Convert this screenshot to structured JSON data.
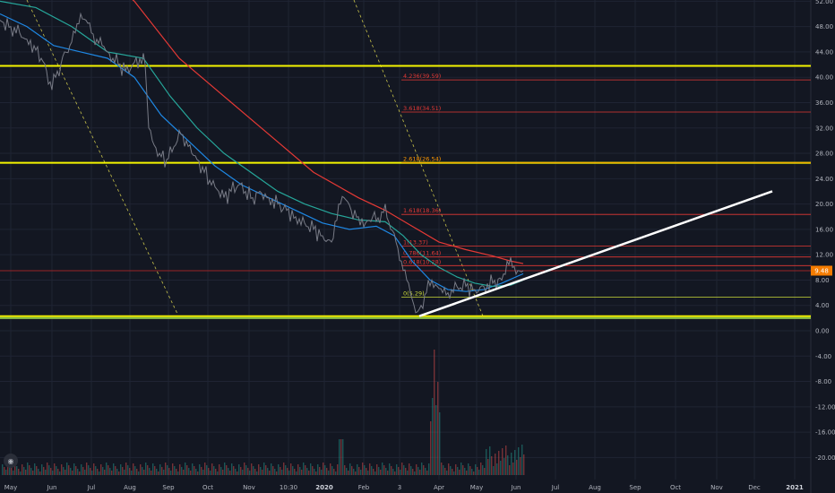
{
  "chart_data": {
    "type": "line",
    "ylim": [
      -22,
      52
    ],
    "y_ticks": [
      "52.00",
      "48.00",
      "44.00",
      "40.00",
      "36.00",
      "32.00",
      "28.00",
      "24.00",
      "20.00",
      "16.00",
      "12.00",
      "8.00",
      "4.00",
      "0.00",
      "-4.00",
      "-8.00",
      "-12.00",
      "-16.00",
      "-20.00"
    ],
    "x_ticks": [
      {
        "label": "May",
        "bold": false
      },
      {
        "label": "Jun",
        "bold": false
      },
      {
        "label": "Jul",
        "bold": false
      },
      {
        "label": "Aug",
        "bold": false
      },
      {
        "label": "Sep",
        "bold": false
      },
      {
        "label": "Oct",
        "bold": false
      },
      {
        "label": "Nov",
        "bold": false
      },
      {
        "label": "10:30",
        "bold": false
      },
      {
        "label": "2020",
        "bold": true
      },
      {
        "label": "Feb",
        "bold": false
      },
      {
        "label": "3",
        "bold": false
      },
      {
        "label": "Apr",
        "bold": false
      },
      {
        "label": "May",
        "bold": false
      },
      {
        "label": "Jun",
        "bold": false
      },
      {
        "label": "Jul",
        "bold": false
      },
      {
        "label": "Aug",
        "bold": false
      },
      {
        "label": "Sep",
        "bold": false
      },
      {
        "label": "Oct",
        "bold": false
      },
      {
        "label": "Nov",
        "bold": false
      },
      {
        "label": "Dec",
        "bold": false
      },
      {
        "label": "2021",
        "bold": true
      }
    ],
    "last_price": "9.48",
    "horizontal_lines": [
      {
        "value": 41.8,
        "color": "#f5f500"
      },
      {
        "value": 26.5,
        "color": "#f5f500"
      },
      {
        "value": 2.3,
        "color": "#f5f500"
      },
      {
        "value": 2.0,
        "color": "#8bc34a"
      }
    ],
    "fib_levels": [
      {
        "label": "4.236(39.59)",
        "value": 39.59,
        "color": "#e53935"
      },
      {
        "label": "3.618(34.51)",
        "value": 34.51,
        "color": "#e53935"
      },
      {
        "label": "2.618(26.54)",
        "value": 26.54,
        "color": "#ff9800"
      },
      {
        "label": "1.618(18.36)",
        "value": 18.36,
        "color": "#e53935"
      },
      {
        "label": "1(13.37)",
        "value": 13.37,
        "color": "#e53935"
      },
      {
        "label": "0.786(11.64)",
        "value": 11.64,
        "color": "#e53935"
      },
      {
        "label": "0.618(10.28)",
        "value": 10.28,
        "color": "#e53935"
      },
      {
        "label": "0(5.29)",
        "value": 5.29,
        "color": "#cddc39"
      }
    ],
    "price_series": {
      "name": "",
      "color": "#787b86",
      "points": [
        [
          0,
          49
        ],
        [
          12,
          48
        ],
        [
          22,
          47
        ],
        [
          30,
          46
        ],
        [
          38,
          45
        ],
        [
          46,
          43
        ],
        [
          52,
          41
        ],
        [
          58,
          38
        ],
        [
          62,
          40
        ],
        [
          68,
          42
        ],
        [
          72,
          44
        ],
        [
          78,
          45
        ],
        [
          84,
          47
        ],
        [
          90,
          50
        ],
        [
          96,
          49
        ],
        [
          102,
          47
        ],
        [
          108,
          46
        ],
        [
          114,
          45
        ],
        [
          120,
          44
        ],
        [
          126,
          43
        ],
        [
          132,
          42
        ],
        [
          140,
          41
        ],
        [
          148,
          42
        ],
        [
          156,
          43
        ],
        [
          162,
          42
        ],
        [
          166,
          32
        ],
        [
          170,
          30
        ],
        [
          178,
          28
        ],
        [
          186,
          27
        ],
        [
          194,
          29
        ],
        [
          202,
          31
        ],
        [
          208,
          30
        ],
        [
          214,
          28
        ],
        [
          220,
          27
        ],
        [
          228,
          25
        ],
        [
          236,
          23
        ],
        [
          244,
          22
        ],
        [
          250,
          21
        ],
        [
          258,
          22
        ],
        [
          266,
          23
        ],
        [
          274,
          22
        ],
        [
          282,
          21
        ],
        [
          290,
          22
        ],
        [
          300,
          21
        ],
        [
          310,
          20
        ],
        [
          320,
          19
        ],
        [
          330,
          18
        ],
        [
          340,
          17
        ],
        [
          350,
          16
        ],
        [
          360,
          15
        ],
        [
          370,
          14
        ],
        [
          378,
          20
        ],
        [
          384,
          21
        ],
        [
          392,
          19
        ],
        [
          400,
          18
        ],
        [
          408,
          17
        ],
        [
          416,
          18
        ],
        [
          424,
          17
        ],
        [
          430,
          20
        ],
        [
          436,
          16
        ],
        [
          442,
          14
        ],
        [
          448,
          11
        ],
        [
          454,
          8
        ],
        [
          460,
          5
        ],
        [
          466,
          3
        ],
        [
          470,
          4
        ],
        [
          476,
          6
        ],
        [
          482,
          8
        ],
        [
          488,
          7
        ],
        [
          494,
          6
        ],
        [
          500,
          6
        ],
        [
          510,
          7
        ],
        [
          520,
          7
        ],
        [
          530,
          6.5
        ],
        [
          540,
          7
        ],
        [
          550,
          7.5
        ],
        [
          560,
          8
        ],
        [
          566,
          11
        ],
        [
          572,
          10
        ],
        [
          578,
          9.5
        ],
        [
          584,
          9.48
        ]
      ]
    },
    "moving_averages": [
      {
        "name": "",
        "color": "#1e88e5",
        "points": [
          [
            0,
            50
          ],
          [
            30,
            48
          ],
          [
            60,
            45
          ],
          [
            90,
            44
          ],
          [
            120,
            43
          ],
          [
            150,
            40
          ],
          [
            180,
            34
          ],
          [
            210,
            30
          ],
          [
            240,
            26
          ],
          [
            270,
            23
          ],
          [
            300,
            21
          ],
          [
            330,
            19
          ],
          [
            360,
            17
          ],
          [
            390,
            16
          ],
          [
            420,
            16.5
          ],
          [
            440,
            15
          ],
          [
            460,
            11
          ],
          [
            480,
            8
          ],
          [
            500,
            6.5
          ],
          [
            520,
            6.2
          ],
          [
            540,
            6.5
          ],
          [
            560,
            7.5
          ],
          [
            584,
            9
          ]
        ]
      },
      {
        "name": "",
        "color": "#26a69a",
        "points": [
          [
            0,
            52
          ],
          [
            40,
            51
          ],
          [
            80,
            48
          ],
          [
            120,
            44
          ],
          [
            160,
            43
          ],
          [
            190,
            37
          ],
          [
            220,
            32
          ],
          [
            250,
            28
          ],
          [
            280,
            25
          ],
          [
            310,
            22
          ],
          [
            340,
            20
          ],
          [
            370,
            18.5
          ],
          [
            400,
            17.5
          ],
          [
            430,
            17.2
          ],
          [
            450,
            15
          ],
          [
            470,
            12
          ],
          [
            490,
            10
          ],
          [
            510,
            8.5
          ],
          [
            530,
            7.5
          ],
          [
            550,
            7
          ],
          [
            570,
            7.2
          ],
          [
            584,
            8
          ]
        ]
      },
      {
        "name": "",
        "color": "#e53935",
        "points": [
          [
            0,
            60
          ],
          [
            100,
            58
          ],
          [
            150,
            52
          ],
          [
            200,
            43
          ],
          [
            250,
            37
          ],
          [
            300,
            31
          ],
          [
            350,
            25
          ],
          [
            400,
            21
          ],
          [
            430,
            19
          ],
          [
            460,
            16.5
          ],
          [
            490,
            14
          ],
          [
            520,
            12.8
          ],
          [
            550,
            11.8
          ],
          [
            570,
            11
          ],
          [
            584,
            10.6
          ]
        ]
      }
    ],
    "trend_lines": [
      {
        "color": "#ffffff",
        "from": [
          468,
          2.3
        ],
        "to": [
          862,
          22
        ]
      }
    ]
  }
}
